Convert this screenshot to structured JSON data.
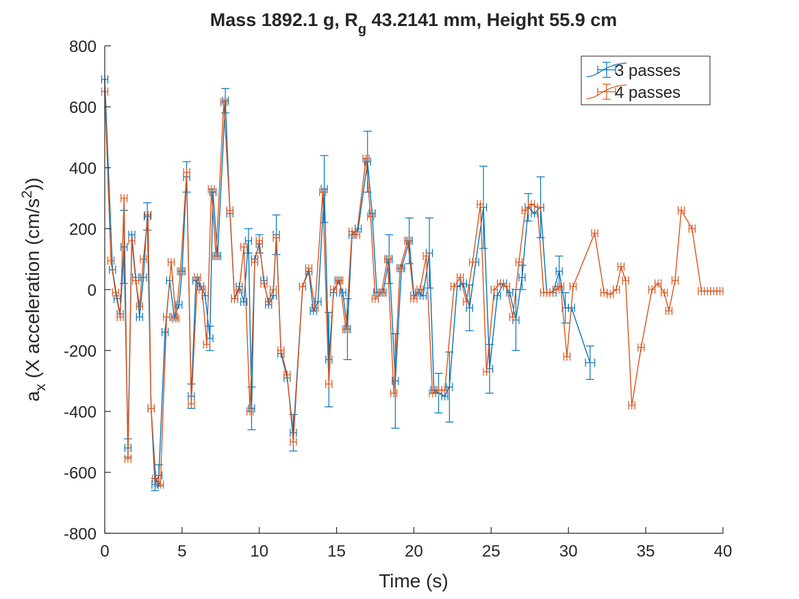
{
  "chart_data": {
    "type": "line",
    "title": {
      "part1": "Mass 1892.1 g, R",
      "sub": "g",
      "part2": " 43.2141 mm,  Height 55.9 cm"
    },
    "xlabel": "Time (s)",
    "ylabel": {
      "base": "a",
      "sub": "x",
      "mid": " (X acceleration (cm/s",
      "sup": "2",
      "end": "))"
    },
    "xlim": [
      0,
      40
    ],
    "ylim": [
      -800,
      800
    ],
    "xticks": [
      0,
      5,
      10,
      15,
      20,
      25,
      30,
      35,
      40
    ],
    "yticks": [
      -800,
      -600,
      -400,
      -200,
      0,
      200,
      400,
      600,
      800
    ],
    "grid": false,
    "legend_position": "top-right",
    "series": [
      {
        "name": "3 passes",
        "color": "#0072BD",
        "points": [
          [
            0.0,
            690,
            0,
            0.2
          ],
          [
            0.5,
            65,
            0,
            0.2
          ],
          [
            0.8,
            -30,
            0,
            0.2
          ],
          [
            1.0,
            -80,
            0,
            0.2
          ],
          [
            1.25,
            140,
            120,
            0.2
          ],
          [
            1.5,
            -520,
            30,
            0.2
          ],
          [
            1.75,
            180,
            0,
            0.2
          ],
          [
            2.0,
            40,
            0,
            0.2
          ],
          [
            2.25,
            -90,
            0,
            0.2
          ],
          [
            2.5,
            40,
            0,
            0.2
          ],
          [
            2.75,
            240,
            45,
            0.2
          ],
          [
            3.0,
            -390,
            0,
            0.2
          ],
          [
            3.25,
            -640,
            20,
            0.2
          ],
          [
            3.5,
            -610,
            35,
            0.2
          ],
          [
            3.9,
            -140,
            0,
            0.2
          ],
          [
            4.2,
            30,
            0,
            0.2
          ],
          [
            4.5,
            -90,
            0,
            0.2
          ],
          [
            4.8,
            -50,
            0,
            0.2
          ],
          [
            5.0,
            60,
            0,
            0.2
          ],
          [
            5.3,
            370,
            50,
            0.2
          ],
          [
            5.6,
            -350,
            40,
            0.2
          ],
          [
            5.9,
            30,
            0,
            0.2
          ],
          [
            6.2,
            10,
            0,
            0.2
          ],
          [
            6.5,
            -20,
            0,
            0.2
          ],
          [
            6.8,
            -160,
            40,
            0.2
          ],
          [
            7.0,
            320,
            0,
            0.2
          ],
          [
            7.3,
            110,
            0,
            0.2
          ],
          [
            7.8,
            620,
            40,
            0.2
          ],
          [
            8.1,
            250,
            0,
            0.2
          ],
          [
            8.4,
            -30,
            0,
            0.2
          ],
          [
            8.7,
            10,
            0,
            0.2
          ],
          [
            9.0,
            -40,
            0,
            0.2
          ],
          [
            9.3,
            160,
            40,
            0.2
          ],
          [
            9.5,
            -390,
            70,
            0.2
          ],
          [
            9.7,
            100,
            0,
            0.2
          ],
          [
            10.0,
            150,
            30,
            0.2
          ],
          [
            10.3,
            30,
            0,
            0.2
          ],
          [
            10.6,
            -50,
            0,
            0.2
          ],
          [
            10.9,
            -20,
            0,
            0.2
          ],
          [
            11.1,
            180,
            65,
            0.2
          ],
          [
            11.4,
            -210,
            0,
            0.2
          ],
          [
            11.8,
            -290,
            0,
            0.2
          ],
          [
            12.2,
            -470,
            60,
            0.2
          ],
          [
            12.8,
            10,
            0,
            0.2
          ],
          [
            13.2,
            60,
            0,
            0.2
          ],
          [
            13.5,
            -70,
            0,
            0.2
          ],
          [
            13.8,
            -40,
            0,
            0.2
          ],
          [
            14.2,
            330,
            110,
            0.2
          ],
          [
            14.5,
            -230,
            155,
            0.2
          ],
          [
            14.8,
            -10,
            0,
            0.2
          ],
          [
            15.1,
            30,
            0,
            0.2
          ],
          [
            15.4,
            -10,
            0,
            0.2
          ],
          [
            15.7,
            -130,
            100,
            0.2
          ],
          [
            16.0,
            180,
            0,
            0.2
          ],
          [
            16.4,
            200,
            0,
            0.2
          ],
          [
            17.0,
            420,
            100,
            0.2
          ],
          [
            17.3,
            250,
            0,
            0.2
          ],
          [
            17.6,
            -10,
            0,
            0.2
          ],
          [
            18.0,
            -10,
            0,
            0.2
          ],
          [
            18.4,
            100,
            80,
            0.2
          ],
          [
            18.8,
            -300,
            155,
            0.2
          ],
          [
            19.2,
            70,
            0,
            0.2
          ],
          [
            19.7,
            160,
            75,
            0.2
          ],
          [
            20.0,
            -20,
            0,
            0.2
          ],
          [
            20.3,
            -10,
            0,
            0.2
          ],
          [
            20.6,
            -20,
            0,
            0.2
          ],
          [
            21.0,
            120,
            115,
            0.2
          ],
          [
            21.3,
            -330,
            0,
            0.2
          ],
          [
            21.6,
            -340,
            65,
            0.2
          ],
          [
            22.0,
            -350,
            0,
            0.2
          ],
          [
            22.3,
            -320,
            115,
            0.2
          ],
          [
            22.8,
            10,
            0,
            0.2
          ],
          [
            23.2,
            20,
            0,
            0.2
          ],
          [
            23.6,
            -60,
            75,
            0.2
          ],
          [
            24.0,
            90,
            0,
            0.2
          ],
          [
            24.5,
            270,
            135,
            0.2
          ],
          [
            24.9,
            -260,
            80,
            0.2
          ],
          [
            25.4,
            -20,
            0,
            0.2
          ],
          [
            25.8,
            20,
            0,
            0.2
          ],
          [
            26.2,
            -10,
            0,
            0.2
          ],
          [
            26.6,
            -100,
            100,
            0.2
          ],
          [
            27.0,
            40,
            40,
            0.2
          ],
          [
            27.4,
            270,
            45,
            0.2
          ],
          [
            27.8,
            250,
            0,
            0.2
          ],
          [
            28.2,
            270,
            100,
            0.2
          ],
          [
            28.6,
            -10,
            0,
            0.2
          ],
          [
            29.0,
            -10,
            0,
            0.2
          ],
          [
            29.4,
            60,
            50,
            0.2
          ],
          [
            29.8,
            -60,
            50,
            0.2
          ],
          [
            30.2,
            -60,
            0,
            0.2
          ],
          [
            31.4,
            -240,
            55,
            0.3
          ]
        ]
      },
      {
        "name": "4 passes",
        "color": "#D95319",
        "points": [
          [
            0.0,
            650,
            0,
            0.2
          ],
          [
            0.4,
            95,
            0,
            0.2
          ],
          [
            0.7,
            -10,
            0,
            0.2
          ],
          [
            1.0,
            -90,
            0,
            0.2
          ],
          [
            1.25,
            300,
            0,
            0.2
          ],
          [
            1.5,
            -555,
            0,
            0.2
          ],
          [
            1.75,
            160,
            0,
            0.2
          ],
          [
            2.0,
            30,
            0,
            0.2
          ],
          [
            2.25,
            -55,
            0,
            0.2
          ],
          [
            2.5,
            100,
            0,
            0.2
          ],
          [
            2.8,
            245,
            0,
            0.2
          ],
          [
            3.0,
            -390,
            0,
            0.2
          ],
          [
            3.3,
            -620,
            0,
            0.2
          ],
          [
            3.6,
            -640,
            0,
            0.2
          ],
          [
            4.0,
            -90,
            0,
            0.2
          ],
          [
            4.3,
            90,
            0,
            0.2
          ],
          [
            4.6,
            -95,
            0,
            0.2
          ],
          [
            4.9,
            60,
            0,
            0.2
          ],
          [
            5.3,
            385,
            0,
            0.2
          ],
          [
            5.6,
            -375,
            0,
            0.2
          ],
          [
            6.0,
            40,
            0,
            0.2
          ],
          [
            6.3,
            0,
            0,
            0.2
          ],
          [
            6.6,
            -180,
            0,
            0.2
          ],
          [
            6.9,
            330,
            0,
            0.2
          ],
          [
            7.2,
            110,
            0,
            0.2
          ],
          [
            7.7,
            615,
            0,
            0.2
          ],
          [
            8.1,
            260,
            0,
            0.2
          ],
          [
            8.4,
            -30,
            0,
            0.2
          ],
          [
            8.7,
            0,
            0,
            0.2
          ],
          [
            9.0,
            140,
            0,
            0.2
          ],
          [
            9.4,
            -400,
            0,
            0.2
          ],
          [
            9.7,
            90,
            0,
            0.2
          ],
          [
            10.0,
            160,
            0,
            0.2
          ],
          [
            10.3,
            20,
            0,
            0.2
          ],
          [
            10.6,
            -40,
            0,
            0.2
          ],
          [
            10.9,
            0,
            0,
            0.2
          ],
          [
            11.1,
            170,
            0,
            0.2
          ],
          [
            11.4,
            -200,
            0,
            0.2
          ],
          [
            11.8,
            -280,
            0,
            0.2
          ],
          [
            12.2,
            -500,
            0,
            0.2
          ],
          [
            12.8,
            10,
            0,
            0.2
          ],
          [
            13.2,
            70,
            0,
            0.2
          ],
          [
            13.6,
            -60,
            0,
            0.2
          ],
          [
            14.1,
            320,
            0,
            0.2
          ],
          [
            14.5,
            -310,
            0,
            0.2
          ],
          [
            14.8,
            0,
            0,
            0.2
          ],
          [
            15.2,
            30,
            0,
            0.2
          ],
          [
            15.6,
            -130,
            0,
            0.2
          ],
          [
            16.0,
            190,
            0,
            0.2
          ],
          [
            16.3,
            180,
            0,
            0.2
          ],
          [
            16.9,
            430,
            0,
            0.2
          ],
          [
            17.2,
            240,
            0,
            0.2
          ],
          [
            17.5,
            -30,
            0,
            0.2
          ],
          [
            17.9,
            -10,
            0,
            0.2
          ],
          [
            18.3,
            100,
            0,
            0.2
          ],
          [
            18.7,
            -340,
            0,
            0.2
          ],
          [
            19.1,
            70,
            0,
            0.2
          ],
          [
            19.6,
            160,
            0,
            0.2
          ],
          [
            20.0,
            -30,
            0,
            0.2
          ],
          [
            20.4,
            0,
            0,
            0.2
          ],
          [
            20.8,
            110,
            0,
            0.2
          ],
          [
            21.2,
            -340,
            0,
            0.2
          ],
          [
            21.6,
            -330,
            0,
            0.2
          ],
          [
            22.0,
            -330,
            0,
            0.2
          ],
          [
            22.6,
            10,
            0,
            0.2
          ],
          [
            23.0,
            40,
            0,
            0.2
          ],
          [
            23.4,
            -40,
            0,
            0.2
          ],
          [
            23.8,
            90,
            0,
            0.2
          ],
          [
            24.3,
            280,
            0,
            0.2
          ],
          [
            24.7,
            -270,
            0,
            0.2
          ],
          [
            25.2,
            0,
            0,
            0.2
          ],
          [
            25.6,
            20,
            0,
            0.2
          ],
          [
            26.0,
            10,
            0,
            0.2
          ],
          [
            26.4,
            -90,
            0,
            0.2
          ],
          [
            26.8,
            90,
            0,
            0.2
          ],
          [
            27.2,
            260,
            0,
            0.2
          ],
          [
            27.6,
            280,
            0,
            0.2
          ],
          [
            28.0,
            270,
            0,
            0.2
          ],
          [
            28.4,
            -10,
            0,
            0.2
          ],
          [
            28.8,
            -10,
            0,
            0.2
          ],
          [
            29.2,
            0,
            0,
            0.2
          ],
          [
            29.5,
            10,
            0,
            0.2
          ],
          [
            29.9,
            -220,
            0,
            0.2
          ],
          [
            30.3,
            10,
            0,
            0.2
          ],
          [
            31.7,
            185,
            0,
            0.2
          ],
          [
            32.3,
            -10,
            0,
            0.2
          ],
          [
            32.7,
            -15,
            0,
            0.2
          ],
          [
            33.1,
            0,
            0,
            0.2
          ],
          [
            33.4,
            75,
            0,
            0.2
          ],
          [
            33.7,
            30,
            0,
            0.2
          ],
          [
            34.1,
            -380,
            0,
            0.2
          ],
          [
            34.7,
            -190,
            0,
            0.2
          ],
          [
            35.4,
            0,
            0,
            0.2
          ],
          [
            35.8,
            20,
            0,
            0.2
          ],
          [
            36.2,
            -10,
            0,
            0.2
          ],
          [
            36.5,
            -70,
            0,
            0.2
          ],
          [
            36.9,
            30,
            0,
            0.2
          ],
          [
            37.3,
            260,
            0,
            0.2
          ],
          [
            38.0,
            200,
            0,
            0.2
          ],
          [
            38.6,
            -5,
            0,
            0.2
          ],
          [
            39.0,
            -5,
            0,
            0.2
          ],
          [
            39.4,
            -5,
            0,
            0.2
          ],
          [
            39.8,
            -5,
            0,
            0.2
          ]
        ]
      }
    ]
  }
}
